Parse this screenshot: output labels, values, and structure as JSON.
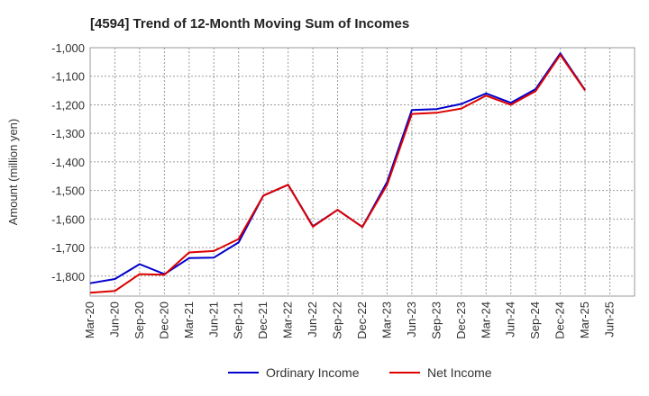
{
  "chart_data": {
    "type": "line",
    "title": "[4594]  Trend of 12-Month Moving Sum of Incomes",
    "xlabel": "",
    "ylabel": "Amount (million yen)",
    "ylim": [
      -1870,
      -1000
    ],
    "yticks": [
      -1800,
      -1700,
      -1600,
      -1500,
      -1400,
      -1300,
      -1200,
      -1100,
      -1000
    ],
    "ytick_labels": [
      "-1,800",
      "-1,700",
      "-1,600",
      "-1,500",
      "-1,400",
      "-1,300",
      "-1,200",
      "-1,100",
      "-1,000"
    ],
    "categories": [
      "Mar-20",
      "Jun-20",
      "Sep-20",
      "Dec-20",
      "Mar-21",
      "Jun-21",
      "Sep-21",
      "Dec-21",
      "Mar-22",
      "Jun-22",
      "Sep-22",
      "Dec-22",
      "Mar-23",
      "Jun-23",
      "Sep-23",
      "Dec-23",
      "Mar-24",
      "Jun-24",
      "Sep-24",
      "Dec-24",
      "Mar-25",
      "Jun-25"
    ],
    "grid": true,
    "legend_position": "bottom",
    "series": [
      {
        "name": "Ordinary Income",
        "color": "#0000cc",
        "values": [
          -1825,
          -1810,
          -1758,
          -1793,
          -1737,
          -1735,
          -1682,
          -1518,
          -1480,
          -1625,
          -1568,
          -1628,
          -1470,
          -1218,
          -1215,
          -1197,
          -1160,
          -1193,
          -1145,
          -1020,
          -1148,
          null
        ]
      },
      {
        "name": "Net Income",
        "color": "#dd0000",
        "values": [
          -1858,
          -1852,
          -1793,
          -1795,
          -1717,
          -1712,
          -1670,
          -1518,
          -1480,
          -1627,
          -1568,
          -1628,
          -1480,
          -1232,
          -1228,
          -1213,
          -1168,
          -1200,
          -1152,
          -1025,
          -1150,
          null
        ]
      }
    ]
  }
}
